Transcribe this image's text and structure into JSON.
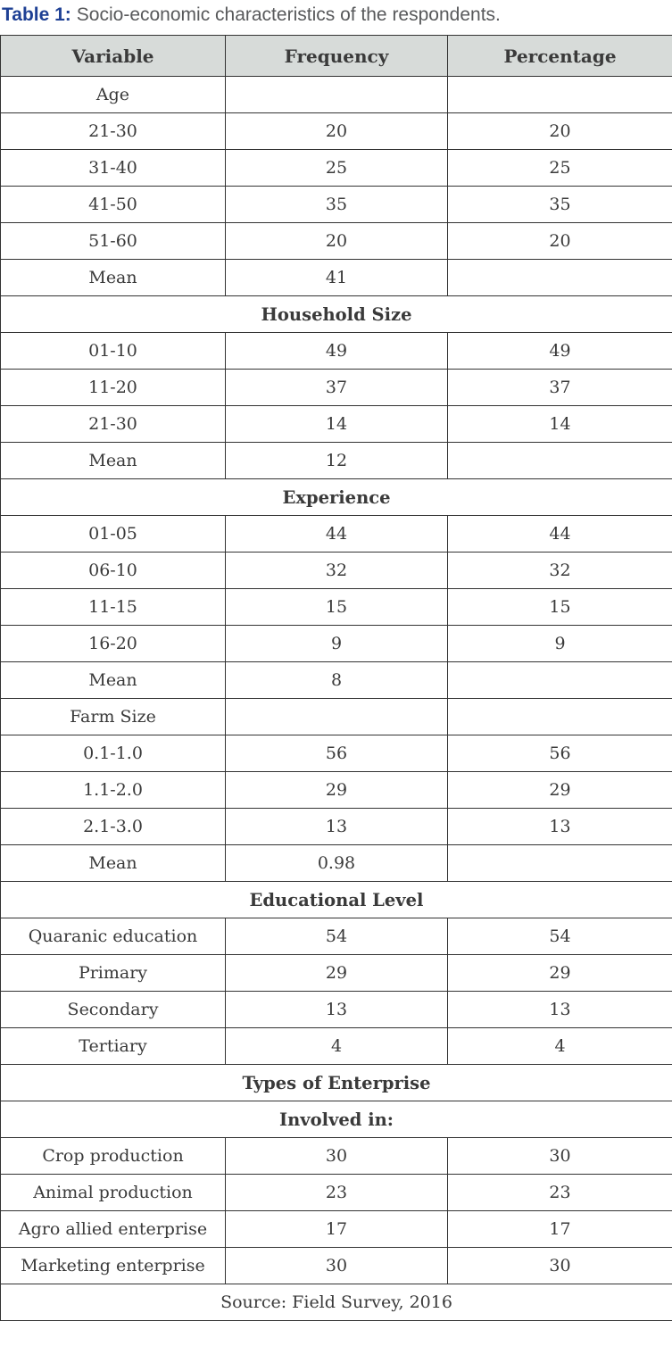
{
  "title": {
    "label": "Table 1:",
    "text": "Socio-economic characteristics of the respondents."
  },
  "table": {
    "headers": [
      "Variable",
      "Frequency",
      "Percentage"
    ],
    "rows": [
      {
        "type": "data",
        "cells": [
          "Age",
          "",
          ""
        ]
      },
      {
        "type": "data",
        "cells": [
          "21-30",
          "20",
          "20"
        ]
      },
      {
        "type": "data",
        "cells": [
          "31-40",
          "25",
          "25"
        ]
      },
      {
        "type": "data",
        "cells": [
          "41-50",
          "35",
          "35"
        ]
      },
      {
        "type": "data",
        "cells": [
          "51-60",
          "20",
          "20"
        ]
      },
      {
        "type": "data",
        "cells": [
          "Mean",
          "41",
          ""
        ]
      },
      {
        "type": "section",
        "label": "Household Size"
      },
      {
        "type": "data",
        "cells": [
          "01-10",
          "49",
          "49"
        ]
      },
      {
        "type": "data",
        "cells": [
          "11-20",
          "37",
          "37"
        ]
      },
      {
        "type": "data",
        "cells": [
          "21-30",
          "14",
          "14"
        ]
      },
      {
        "type": "data",
        "cells": [
          "Mean",
          "12",
          ""
        ]
      },
      {
        "type": "section",
        "label": "Experience"
      },
      {
        "type": "data",
        "cells": [
          "01-05",
          "44",
          "44"
        ]
      },
      {
        "type": "data",
        "cells": [
          "06-10",
          "32",
          "32"
        ]
      },
      {
        "type": "data",
        "cells": [
          "11-15",
          "15",
          "15"
        ]
      },
      {
        "type": "data",
        "cells": [
          "16-20",
          "9",
          "9"
        ]
      },
      {
        "type": "data",
        "cells": [
          "Mean",
          "8",
          ""
        ]
      },
      {
        "type": "data",
        "cells": [
          "Farm Size",
          "",
          ""
        ]
      },
      {
        "type": "data",
        "cells": [
          "0.1-1.0",
          "56",
          "56"
        ]
      },
      {
        "type": "data",
        "cells": [
          "1.1-2.0",
          "29",
          "29"
        ]
      },
      {
        "type": "data",
        "cells": [
          "2.1-3.0",
          "13",
          "13"
        ]
      },
      {
        "type": "data",
        "cells": [
          "Mean",
          "0.98",
          ""
        ]
      },
      {
        "type": "section",
        "label": "Educational Level"
      },
      {
        "type": "data",
        "cells": [
          "Quaranic education",
          "54",
          "54"
        ]
      },
      {
        "type": "data",
        "cells": [
          "Primary",
          "29",
          "29"
        ]
      },
      {
        "type": "data",
        "cells": [
          "Secondary",
          "13",
          "13"
        ]
      },
      {
        "type": "data",
        "cells": [
          "Tertiary",
          "4",
          "4"
        ]
      },
      {
        "type": "section",
        "label": "Types of Enterprise"
      },
      {
        "type": "section",
        "label": "Involved in:"
      },
      {
        "type": "data",
        "cells": [
          "Crop production",
          "30",
          "30"
        ]
      },
      {
        "type": "data",
        "cells": [
          "Animal production",
          "23",
          "23"
        ]
      },
      {
        "type": "data",
        "cells": [
          "Agro allied enterprise",
          "17",
          "17"
        ]
      },
      {
        "type": "data",
        "cells": [
          "Marketing enterprise",
          "30",
          "30"
        ]
      },
      {
        "type": "note",
        "label": "Source: Field Survey, 2016"
      }
    ]
  },
  "colors": {
    "title_label": "#1e4094",
    "title_text": "#58595b",
    "header_bg": "#d7dbd9",
    "cell_text": "#3a3a3a",
    "border": "#333333"
  }
}
